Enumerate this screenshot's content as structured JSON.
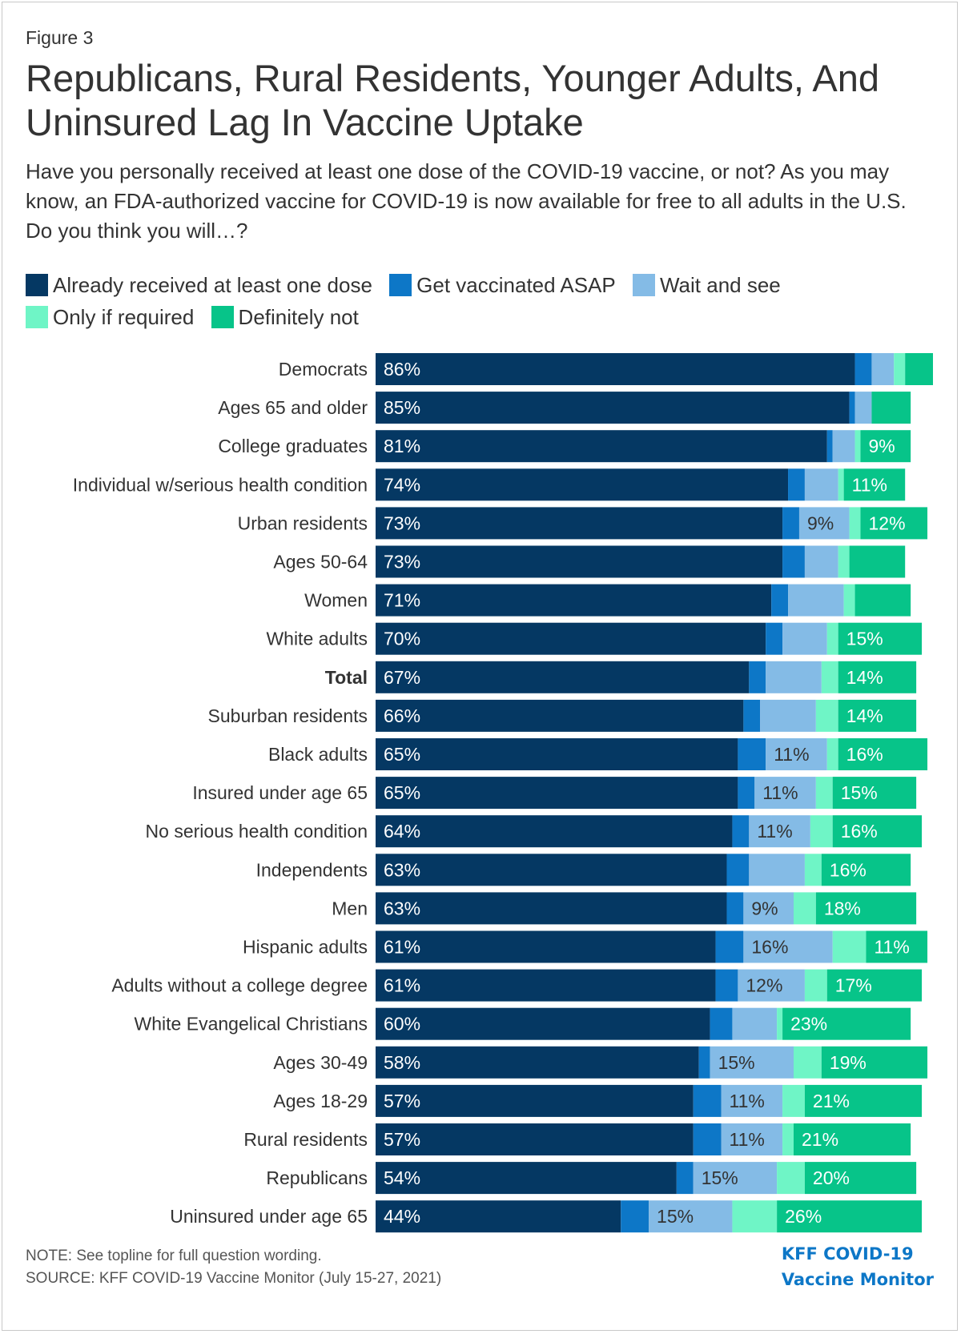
{
  "figure_label": "Figure 3",
  "title_line1": "Republicans, Rural Residents, Younger Adults, And",
  "title_line2": "Uninsured Lag In Vaccine Uptake",
  "subtitle": "Have you personally received at least one dose of the COVID-19 vaccine, or not? As you may know, an FDA-authorized vaccine for COVID-19 is now available for free to all adults in the U.S. Do you think you will…?",
  "note": "NOTE: See topline for full question wording.",
  "source": "SOURCE: KFF COVID-19 Vaccine Monitor (July 15-27, 2021)",
  "brand_line1": "KFF COVID-19",
  "brand_line2": "Vaccine Monitor",
  "colors": {
    "already": "#053863",
    "asap": "#0d77c7",
    "wait": "#84bbe6",
    "only_if_required": "#6ff5c6",
    "definitely_not": "#07c489",
    "dark_label": "#ffffff",
    "light_label": "#333333"
  },
  "chart_data": {
    "type": "bar",
    "orientation": "horizontal",
    "stacked": true,
    "unit": "%",
    "categories": [
      "Democrats",
      "Ages 65 and older",
      "College graduates",
      "Individual w/serious health condition",
      "Urban residents",
      "Ages 50-64",
      "Women",
      "White adults",
      "Total",
      "Suburban residents",
      "Black adults",
      "Insured under age 65",
      "No serious health condition",
      "Independents",
      "Men",
      "Hispanic adults",
      "Adults without a college degree",
      "White Evangelical Christians",
      "Ages 30-49",
      "Ages 18-29",
      "Rural residents",
      "Republicans",
      "Uninsured under age 65"
    ],
    "bold_categories": [
      "Total"
    ],
    "series": [
      {
        "name": "Already received at least one dose",
        "color_key": "already",
        "values": [
          86,
          85,
          81,
          74,
          73,
          73,
          71,
          70,
          67,
          66,
          65,
          65,
          64,
          63,
          63,
          61,
          61,
          60,
          58,
          57,
          57,
          54,
          44
        ],
        "labels": [
          "86%",
          "85%",
          "81%",
          "74%",
          "73%",
          "73%",
          "71%",
          "70%",
          "67%",
          "66%",
          "65%",
          "65%",
          "64%",
          "63%",
          "63%",
          "61%",
          "61%",
          "60%",
          "58%",
          "57%",
          "57%",
          "54%",
          "44%"
        ]
      },
      {
        "name": "Get vaccinated ASAP",
        "color_key": "asap",
        "values": [
          3,
          1,
          1,
          3,
          3,
          4,
          3,
          3,
          3,
          3,
          5,
          3,
          3,
          4,
          3,
          5,
          4,
          4,
          2,
          5,
          5,
          3,
          5
        ],
        "labels": [
          "",
          "",
          "",
          "",
          "",
          "",
          "",
          "",
          "",
          "",
          "",
          "",
          "",
          "",
          "",
          "",
          "",
          "",
          "",
          "",
          "",
          "",
          ""
        ]
      },
      {
        "name": "Wait and see",
        "color_key": "wait",
        "values": [
          4,
          3,
          4,
          6,
          9,
          6,
          10,
          8,
          10,
          10,
          11,
          11,
          11,
          10,
          9,
          16,
          12,
          8,
          15,
          11,
          11,
          15,
          15
        ],
        "labels": [
          "",
          "",
          "",
          "",
          "9%",
          "",
          "",
          "",
          "",
          "",
          "11%",
          "11%",
          "11%",
          "",
          "9%",
          "16%",
          "12%",
          "",
          "15%",
          "11%",
          "11%",
          "15%",
          "15%"
        ]
      },
      {
        "name": "Only if required",
        "color_key": "only_if_required",
        "values": [
          2,
          0,
          1,
          1,
          2,
          2,
          2,
          2,
          3,
          4,
          2,
          3,
          4,
          3,
          4,
          6,
          4,
          1,
          5,
          4,
          2,
          5,
          8
        ],
        "labels": [
          "",
          "",
          "",
          "",
          "",
          "",
          "",
          "",
          "",
          "",
          "",
          "",
          "",
          "",
          "",
          "",
          "",
          "",
          "",
          "",
          "",
          "",
          ""
        ]
      },
      {
        "name": "Definitely not",
        "color_key": "definitely_not",
        "values": [
          5,
          7,
          9,
          11,
          12,
          10,
          10,
          15,
          14,
          14,
          16,
          15,
          16,
          16,
          18,
          11,
          17,
          23,
          19,
          21,
          21,
          20,
          26
        ],
        "labels": [
          "",
          "",
          "9%",
          "11%",
          "12%",
          "",
          "",
          "15%",
          "14%",
          "14%",
          "16%",
          "15%",
          "16%",
          "16%",
          "18%",
          "11%",
          "17%",
          "23%",
          "19%",
          "21%",
          "21%",
          "20%",
          "26%"
        ]
      }
    ],
    "legend_position": "top",
    "grid": false
  }
}
